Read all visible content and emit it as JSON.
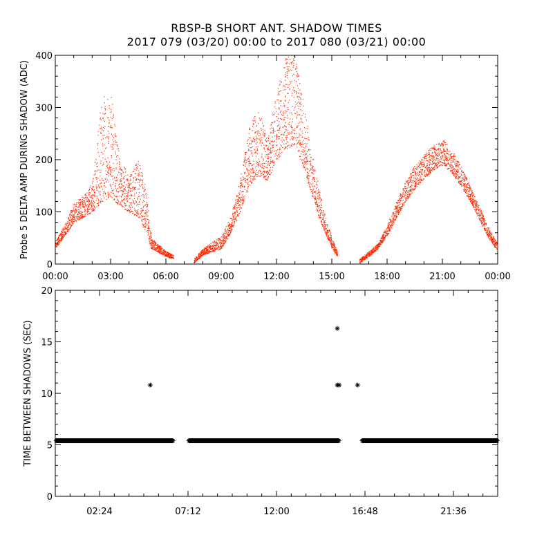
{
  "title": "RBSP-B SHORT ANT. SHADOW TIMES",
  "subtitle": "2017 079 (03/20) 00:00 to 2017 080 (03/21) 00:00",
  "colors": {
    "amp_points": "#ff2a00",
    "time_points": "#000000"
  },
  "chart_data": [
    {
      "type": "scatter",
      "ylabel": "Probe 5 DELTA AMP DURING SHADOW (ADC)",
      "xlim_hours": [
        0,
        24
      ],
      "ylim": [
        0,
        400
      ],
      "x_tick_labels": [
        "00:00",
        "03:00",
        "06:00",
        "09:00",
        "12:00",
        "15:00",
        "18:00",
        "21:00",
        "00:00"
      ],
      "y_tick_labels": [
        "0",
        "100",
        "200",
        "300",
        "400"
      ],
      "series": [
        {
          "envelope": [
            {
              "x": 0.0,
              "lo": 30,
              "hi": 45
            },
            {
              "x": 0.5,
              "lo": 55,
              "hi": 75
            },
            {
              "x": 1.0,
              "lo": 80,
              "hi": 120
            },
            {
              "x": 1.5,
              "lo": 90,
              "hi": 130
            },
            {
              "x": 2.0,
              "lo": 100,
              "hi": 160
            },
            {
              "x": 2.5,
              "lo": 120,
              "hi": 320
            },
            {
              "x": 3.0,
              "lo": 130,
              "hi": 330
            },
            {
              "x": 3.5,
              "lo": 110,
              "hi": 200
            },
            {
              "x": 4.0,
              "lo": 100,
              "hi": 170
            },
            {
              "x": 4.5,
              "lo": 90,
              "hi": 200
            },
            {
              "x": 4.9,
              "lo": 60,
              "hi": 150
            },
            {
              "x": 5.2,
              "lo": 30,
              "hi": 50
            },
            {
              "x": 6.0,
              "lo": 15,
              "hi": 25
            },
            {
              "x": 6.4,
              "lo": 10,
              "hi": 18
            },
            {
              "gap": true
            },
            {
              "x": 7.5,
              "lo": 2,
              "hi": 10
            },
            {
              "x": 8.0,
              "lo": 18,
              "hi": 30
            },
            {
              "x": 9.0,
              "lo": 30,
              "hi": 55
            },
            {
              "x": 9.5,
              "lo": 60,
              "hi": 90
            },
            {
              "x": 10.0,
              "lo": 100,
              "hi": 160
            },
            {
              "x": 10.5,
              "lo": 150,
              "hi": 260
            },
            {
              "x": 11.0,
              "lo": 170,
              "hi": 300
            },
            {
              "x": 11.5,
              "lo": 160,
              "hi": 240
            },
            {
              "x": 12.0,
              "lo": 200,
              "hi": 330
            },
            {
              "x": 12.5,
              "lo": 220,
              "hi": 400
            },
            {
              "x": 13.0,
              "lo": 230,
              "hi": 400
            },
            {
              "x": 13.5,
              "lo": 180,
              "hi": 300
            },
            {
              "x": 14.0,
              "lo": 120,
              "hi": 200
            },
            {
              "x": 14.5,
              "lo": 70,
              "hi": 110
            },
            {
              "x": 15.0,
              "lo": 30,
              "hi": 50
            },
            {
              "x": 15.3,
              "lo": 15,
              "hi": 25
            },
            {
              "gap": true
            },
            {
              "x": 16.5,
              "lo": 2,
              "hi": 10
            },
            {
              "x": 17.0,
              "lo": 15,
              "hi": 25
            },
            {
              "x": 17.5,
              "lo": 30,
              "hi": 40
            },
            {
              "x": 18.0,
              "lo": 55,
              "hi": 75
            },
            {
              "x": 18.5,
              "lo": 90,
              "hi": 120
            },
            {
              "x": 19.0,
              "lo": 120,
              "hi": 160
            },
            {
              "x": 19.5,
              "lo": 145,
              "hi": 190
            },
            {
              "x": 20.0,
              "lo": 165,
              "hi": 210
            },
            {
              "x": 20.5,
              "lo": 180,
              "hi": 230
            },
            {
              "x": 21.0,
              "lo": 190,
              "hi": 240
            },
            {
              "x": 21.5,
              "lo": 175,
              "hi": 220
            },
            {
              "x": 22.0,
              "lo": 150,
              "hi": 190
            },
            {
              "x": 22.5,
              "lo": 120,
              "hi": 150
            },
            {
              "x": 23.0,
              "lo": 85,
              "hi": 110
            },
            {
              "x": 23.5,
              "lo": 50,
              "hi": 70
            },
            {
              "x": 24.0,
              "lo": 25,
              "hi": 40
            }
          ]
        }
      ]
    },
    {
      "type": "scatter",
      "ylabel": "TIME BETWEEN SHADOWS (SEC)",
      "xlim_hours": [
        0,
        24
      ],
      "ylim": [
        0,
        20
      ],
      "x_ticks_hours": [
        2.4,
        7.2,
        12.0,
        16.8,
        21.6
      ],
      "x_tick_labels": [
        "02:24",
        "07:12",
        "12:00",
        "16:48",
        "21:36"
      ],
      "y_tick_labels": [
        "0",
        "5",
        "10",
        "15",
        "20"
      ],
      "baseline": {
        "y": 5.4,
        "ranges_hours": [
          [
            0.05,
            6.4
          ],
          [
            7.25,
            15.4
          ],
          [
            16.65,
            24.0
          ]
        ]
      },
      "outliers": [
        {
          "x": 5.15,
          "y": 10.8
        },
        {
          "x": 15.3,
          "y": 16.3
        },
        {
          "x": 15.3,
          "y": 10.8
        },
        {
          "x": 15.4,
          "y": 10.8
        },
        {
          "x": 16.4,
          "y": 10.8
        }
      ]
    }
  ]
}
